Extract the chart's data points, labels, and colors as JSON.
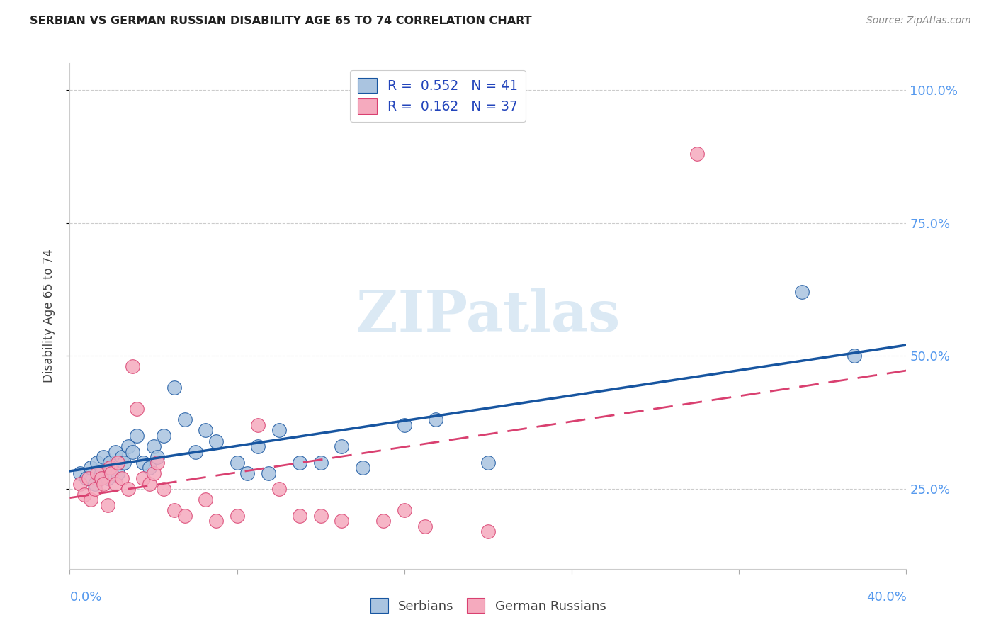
{
  "title": "SERBIAN VS GERMAN RUSSIAN DISABILITY AGE 65 TO 74 CORRELATION CHART",
  "source": "Source: ZipAtlas.com",
  "ylabel": "Disability Age 65 to 74",
  "xlim": [
    0.0,
    0.4
  ],
  "ylim": [
    0.1,
    1.05
  ],
  "ytick_vals": [
    0.25,
    0.5,
    0.75,
    1.0
  ],
  "ytick_labels": [
    "25.0%",
    "50.0%",
    "75.0%",
    "100.0%"
  ],
  "xtick_vals": [
    0.0,
    0.08,
    0.16,
    0.24,
    0.32,
    0.4
  ],
  "legend_r1": "0.552",
  "legend_n1": "41",
  "legend_r2": "0.162",
  "legend_n2": "37",
  "serbians_color": "#aac4e0",
  "german_russians_color": "#f5aabe",
  "line_serbian_color": "#1755a0",
  "line_german_color": "#d94070",
  "watermark_color": "#cce0f0",
  "serbians_x": [
    0.005,
    0.008,
    0.01,
    0.012,
    0.013,
    0.015,
    0.016,
    0.018,
    0.019,
    0.02,
    0.022,
    0.023,
    0.025,
    0.026,
    0.028,
    0.03,
    0.032,
    0.035,
    0.038,
    0.04,
    0.042,
    0.045,
    0.05,
    0.055,
    0.06,
    0.065,
    0.07,
    0.08,
    0.085,
    0.09,
    0.095,
    0.1,
    0.11,
    0.12,
    0.13,
    0.14,
    0.16,
    0.175,
    0.2,
    0.35,
    0.375
  ],
  "serbians_y": [
    0.28,
    0.27,
    0.29,
    0.26,
    0.3,
    0.28,
    0.31,
    0.27,
    0.3,
    0.29,
    0.32,
    0.28,
    0.31,
    0.3,
    0.33,
    0.32,
    0.35,
    0.3,
    0.29,
    0.33,
    0.31,
    0.35,
    0.44,
    0.38,
    0.32,
    0.36,
    0.34,
    0.3,
    0.28,
    0.33,
    0.28,
    0.36,
    0.3,
    0.3,
    0.33,
    0.29,
    0.37,
    0.38,
    0.3,
    0.62,
    0.5
  ],
  "german_russians_x": [
    0.005,
    0.007,
    0.009,
    0.01,
    0.012,
    0.013,
    0.015,
    0.016,
    0.018,
    0.019,
    0.02,
    0.022,
    0.023,
    0.025,
    0.028,
    0.03,
    0.032,
    0.035,
    0.038,
    0.04,
    0.042,
    0.045,
    0.05,
    0.055,
    0.065,
    0.07,
    0.08,
    0.09,
    0.1,
    0.11,
    0.12,
    0.13,
    0.15,
    0.16,
    0.17,
    0.2,
    0.3
  ],
  "german_russians_y": [
    0.26,
    0.24,
    0.27,
    0.23,
    0.25,
    0.28,
    0.27,
    0.26,
    0.22,
    0.29,
    0.28,
    0.26,
    0.3,
    0.27,
    0.25,
    0.48,
    0.4,
    0.27,
    0.26,
    0.28,
    0.3,
    0.25,
    0.21,
    0.2,
    0.23,
    0.19,
    0.2,
    0.37,
    0.25,
    0.2,
    0.2,
    0.19,
    0.19,
    0.21,
    0.18,
    0.17,
    0.88
  ]
}
